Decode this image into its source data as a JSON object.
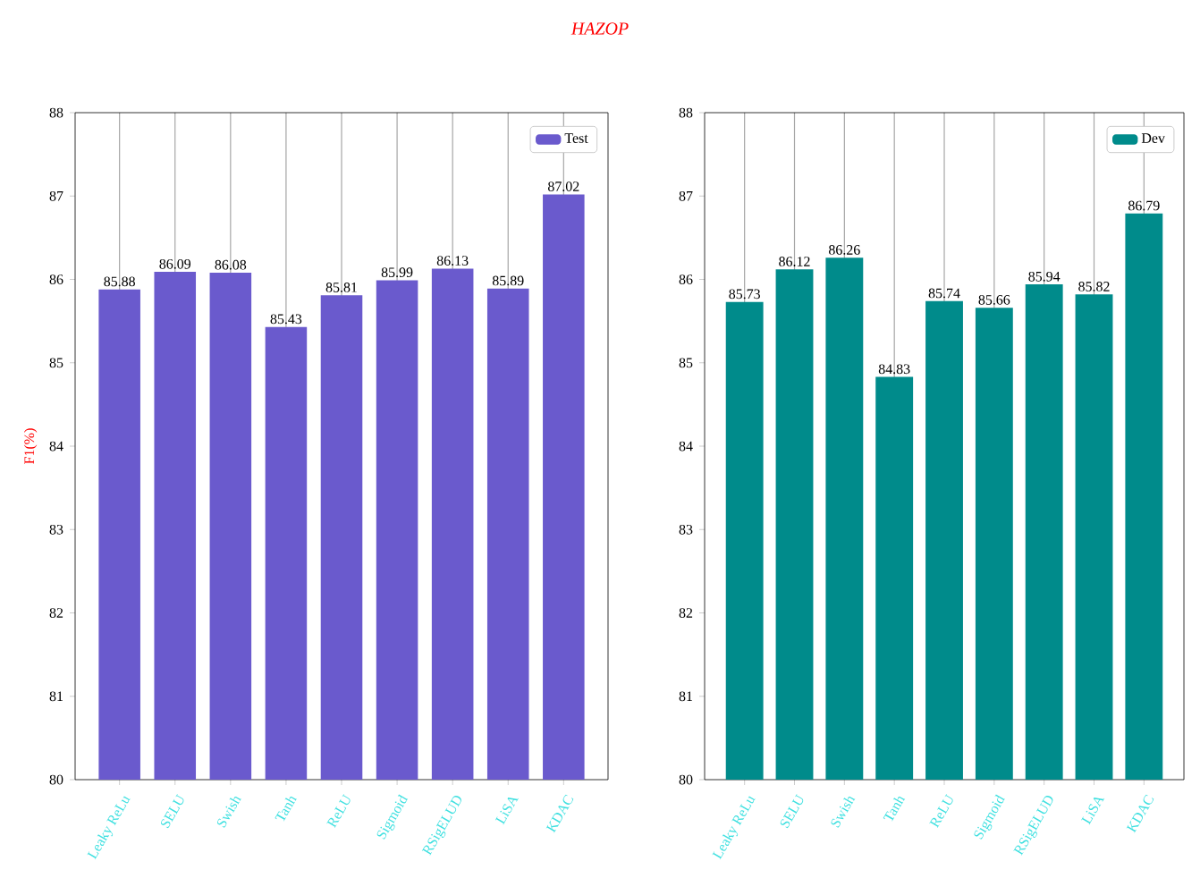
{
  "chart_data": [
    {
      "type": "bar",
      "annotations": [
        "HAZOP"
      ],
      "ylabel": "F1(%)",
      "categories": [
        "Leaky ReLu",
        "SELU",
        "Swish",
        "Tanh",
        "ReLU",
        "Sigmoid",
        "RSigELUD",
        "LiSA",
        "KDAC"
      ],
      "series": [
        {
          "name": "Test",
          "color": "#6a5acd",
          "values": [
            85.88,
            86.09,
            86.08,
            85.43,
            85.81,
            85.99,
            86.13,
            85.89,
            87.02
          ]
        }
      ],
      "ylim": [
        80,
        88
      ],
      "yticks": [
        80,
        81,
        82,
        83,
        84,
        85,
        86,
        87,
        88
      ],
      "grid": "x",
      "legend": "top right",
      "data_labels": true
    },
    {
      "type": "bar",
      "categories": [
        "Leaky ReLu",
        "SELU",
        "Swish",
        "Tanh",
        "ReLU",
        "Sigmoid",
        "RSigELUD",
        "LiSA",
        "KDAC"
      ],
      "series": [
        {
          "name": "Dev",
          "color": "#008b8b",
          "values": [
            85.73,
            86.12,
            86.26,
            84.83,
            85.74,
            85.66,
            85.94,
            85.82,
            86.79
          ]
        }
      ],
      "ylim": [
        80,
        88
      ],
      "yticks": [
        80,
        81,
        82,
        83,
        84,
        85,
        86,
        87,
        88
      ],
      "grid": "x",
      "legend": "top right",
      "data_labels": true
    }
  ]
}
